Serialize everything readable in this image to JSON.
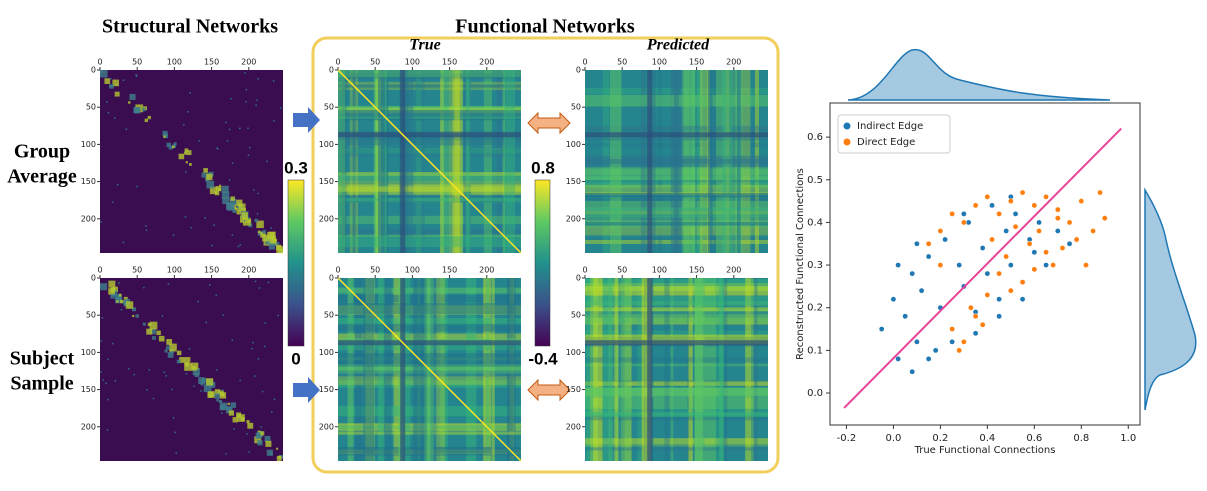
{
  "titles": {
    "structural": "Structural Networks",
    "functional": "Functional Networks",
    "true": "True",
    "predicted": "Predicted"
  },
  "row_labels": [
    [
      "Group",
      "Average"
    ],
    [
      "Subject",
      "Sample"
    ]
  ],
  "heatmap_axis": {
    "lim": [
      0,
      246
    ],
    "ticks": [
      0,
      50,
      100,
      150,
      200
    ]
  },
  "colorbars": [
    {
      "max": 0.3,
      "min": 0
    },
    {
      "max": 0.8,
      "min": -0.4
    }
  ],
  "chart_data": {
    "type": "scatter",
    "xlabel": "True Functional Connections",
    "ylabel": "Reconstructed Functional Connections",
    "xlim": [
      -0.27,
      1.05
    ],
    "ylim": [
      -0.075,
      0.68
    ],
    "xticks": [
      -0.2,
      {
        "value": 0,
        "label": "0.0"
      },
      0.2,
      0.4,
      0.6,
      0.8,
      {
        "value": 1,
        "label": "1.0"
      }
    ],
    "yticks": [
      {
        "value": 0,
        "label": "0.0"
      },
      0.1,
      0.2,
      0.3,
      0.4,
      0.5,
      0.6
    ],
    "legend": "upper left",
    "series": [
      {
        "name": "Indirect Edge",
        "color": "#1f77b4",
        "x": [
          -0.05,
          0.0,
          0.02,
          0.05,
          0.08,
          0.1,
          0.12,
          0.15,
          0.18,
          0.2,
          0.22,
          0.25,
          0.28,
          0.3,
          0.32,
          0.35,
          0.38,
          0.4,
          0.42,
          0.45,
          0.48,
          0.5,
          0.52,
          0.55,
          0.58,
          0.6,
          0.62,
          0.65,
          0.7,
          0.75,
          0.08,
          0.15,
          0.25,
          0.35,
          0.45,
          0.55,
          0.1,
          0.3,
          0.5,
          0.02
        ],
        "values": [
          0.15,
          0.22,
          0.08,
          0.18,
          0.28,
          0.12,
          0.24,
          0.32,
          0.1,
          0.2,
          0.36,
          0.15,
          0.3,
          0.25,
          0.4,
          0.19,
          0.34,
          0.28,
          0.44,
          0.22,
          0.38,
          0.3,
          0.42,
          0.26,
          0.36,
          0.33,
          0.4,
          0.3,
          0.38,
          0.35,
          0.05,
          0.08,
          0.12,
          0.14,
          0.18,
          0.22,
          0.35,
          0.42,
          0.46,
          0.3
        ]
      },
      {
        "name": "Direct Edge",
        "color": "#ff7f0e",
        "x": [
          0.2,
          0.25,
          0.3,
          0.35,
          0.4,
          0.45,
          0.5,
          0.55,
          0.6,
          0.65,
          0.7,
          0.75,
          0.8,
          0.85,
          0.9,
          0.42,
          0.48,
          0.52,
          0.58,
          0.62,
          0.68,
          0.72,
          0.78,
          0.82,
          0.25,
          0.3,
          0.35,
          0.28,
          0.33,
          0.38,
          0.15,
          0.2,
          0.45,
          0.55,
          0.65,
          0.5,
          0.6,
          0.7,
          0.4,
          0.88
        ],
        "values": [
          0.38,
          0.42,
          0.4,
          0.44,
          0.46,
          0.42,
          0.45,
          0.47,
          0.44,
          0.46,
          0.43,
          0.4,
          0.45,
          0.38,
          0.41,
          0.36,
          0.32,
          0.39,
          0.35,
          0.38,
          0.3,
          0.34,
          0.36,
          0.3,
          0.15,
          0.12,
          0.18,
          0.1,
          0.2,
          0.16,
          0.35,
          0.3,
          0.28,
          0.26,
          0.33,
          0.24,
          0.29,
          0.41,
          0.23,
          0.47
        ]
      }
    ],
    "fit_line": {
      "color": "#e8449a",
      "x": [
        -0.21,
        0.97
      ],
      "values": [
        -0.035,
        0.62
      ]
    }
  }
}
